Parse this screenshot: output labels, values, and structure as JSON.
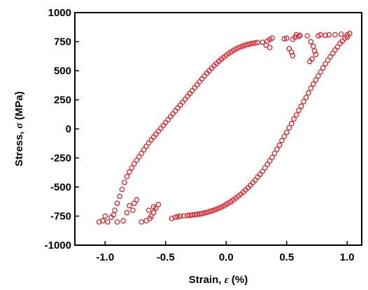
{
  "chart_data": {
    "type": "scatter",
    "xlabel": "Strain,  ε (%)",
    "ylabel": "Stress, σ (MPa)",
    "xlabel_parts": [
      "Strain,  ",
      "ε",
      " (%)"
    ],
    "ylabel_parts": [
      "Stress, ",
      "σ",
      " (MPa)"
    ],
    "xlim": [
      -1.25,
      1.12
    ],
    "ylim": [
      -1000,
      1000
    ],
    "x_ticks": [
      -1.0,
      -0.5,
      0.0,
      0.5,
      1.0
    ],
    "x_tick_labels": [
      "-1.0",
      "-0.5",
      "0.0",
      "0.5",
      "1.0"
    ],
    "y_ticks": [
      -1000,
      -750,
      -500,
      -250,
      0,
      250,
      500,
      750,
      1000
    ],
    "y_tick_labels": [
      "-1000",
      "-750",
      "-500",
      "-250",
      "0",
      "250",
      "500",
      "750",
      "1000"
    ],
    "grid": false,
    "legend": "none",
    "marker": "open-circle",
    "color": "#e8202a",
    "series": [
      {
        "points": [
          [
            -1.05,
            -800
          ],
          [
            -1.02,
            -790
          ],
          [
            -0.98,
            -800
          ],
          [
            -0.95,
            -760
          ],
          [
            -0.92,
            -700
          ],
          [
            -0.9,
            -640
          ],
          [
            -0.88,
            -580
          ],
          [
            -0.86,
            -520
          ],
          [
            -0.84,
            -460
          ],
          [
            -0.82,
            -410
          ],
          [
            -0.8,
            -370
          ],
          [
            -0.78,
            -335
          ],
          [
            -0.76,
            -300
          ],
          [
            -0.74,
            -270
          ],
          [
            -0.72,
            -240
          ],
          [
            -0.7,
            -210
          ],
          [
            -0.68,
            -180
          ],
          [
            -0.66,
            -150
          ],
          [
            -0.64,
            -120
          ],
          [
            -0.62,
            -95
          ],
          [
            -0.6,
            -70
          ],
          [
            -0.58,
            -45
          ],
          [
            -0.56,
            -20
          ],
          [
            -0.54,
            5
          ],
          [
            -0.52,
            30
          ],
          [
            -0.5,
            55
          ],
          [
            -0.48,
            80
          ],
          [
            -0.46,
            105
          ],
          [
            -0.44,
            130
          ],
          [
            -0.42,
            155
          ],
          [
            -0.4,
            180
          ],
          [
            -0.38,
            205
          ],
          [
            -0.36,
            230
          ],
          [
            -0.34,
            255
          ],
          [
            -0.32,
            280
          ],
          [
            -0.3,
            305
          ],
          [
            -0.28,
            330
          ],
          [
            -0.26,
            355
          ],
          [
            -0.24,
            380
          ],
          [
            -0.22,
            405
          ],
          [
            -0.2,
            430
          ],
          [
            -0.18,
            455
          ],
          [
            -0.16,
            478
          ],
          [
            -0.14,
            500
          ],
          [
            -0.12,
            522
          ],
          [
            -0.1,
            543
          ],
          [
            -0.08,
            563
          ],
          [
            -0.06,
            582
          ],
          [
            -0.04,
            600
          ],
          [
            -0.02,
            617
          ],
          [
            0.0,
            633
          ],
          [
            0.02,
            648
          ],
          [
            0.04,
            662
          ],
          [
            0.06,
            675
          ],
          [
            0.08,
            687
          ],
          [
            0.1,
            697
          ],
          [
            0.12,
            706
          ],
          [
            0.14,
            714
          ],
          [
            0.16,
            721
          ],
          [
            0.18,
            727
          ],
          [
            0.2,
            732
          ],
          [
            0.22,
            736
          ],
          [
            0.24,
            740
          ],
          [
            0.26,
            743
          ],
          [
            0.3,
            745
          ],
          [
            0.34,
            755
          ],
          [
            0.36,
            770
          ],
          [
            0.38,
            780
          ],
          [
            0.33,
            720
          ],
          [
            0.36,
            700
          ],
          [
            0.48,
            775
          ],
          [
            0.5,
            780
          ],
          [
            0.55,
            770
          ],
          [
            0.57,
            790
          ],
          [
            0.6,
            795
          ],
          [
            0.58,
            810
          ],
          [
            0.61,
            805
          ],
          [
            0.52,
            690
          ],
          [
            0.54,
            660
          ],
          [
            0.55,
            630
          ],
          [
            0.67,
            800
          ],
          [
            0.7,
            750
          ],
          [
            0.72,
            710
          ],
          [
            0.73,
            670
          ],
          [
            0.74,
            640
          ],
          [
            0.71,
            600
          ],
          [
            0.69,
            580
          ],
          [
            0.76,
            800
          ],
          [
            0.78,
            810
          ],
          [
            0.82,
            805
          ],
          [
            0.85,
            810
          ],
          [
            0.9,
            810
          ],
          [
            0.95,
            815
          ],
          [
            1.0,
            810
          ],
          [
            1.02,
            820
          ],
          [
            -0.7,
            -800
          ],
          [
            -0.66,
            -790
          ],
          [
            -0.63,
            -770
          ],
          [
            -0.6,
            -720
          ],
          [
            -0.58,
            -680
          ],
          [
            -0.56,
            -650
          ],
          [
            -0.62,
            -750
          ],
          [
            -0.64,
            -700
          ],
          [
            -0.6,
            -670
          ],
          [
            -0.76,
            -640
          ],
          [
            -0.74,
            -610
          ],
          [
            -0.77,
            -700
          ],
          [
            -0.85,
            -790
          ],
          [
            -0.82,
            -720
          ],
          [
            -0.8,
            -660
          ],
          [
            -0.9,
            -800
          ],
          [
            -0.93,
            -740
          ],
          [
            -1.0,
            -750
          ],
          [
            -0.45,
            -770
          ],
          [
            -0.42,
            -760
          ],
          [
            -0.4,
            -755
          ],
          [
            -0.38,
            -750
          ],
          [
            -0.35,
            -748
          ],
          [
            -0.32,
            -745
          ],
          [
            -0.28,
            -740
          ],
          [
            -0.24,
            -735
          ],
          [
            -0.2,
            -728
          ],
          [
            -0.16,
            -718
          ],
          [
            -0.12,
            -705
          ],
          [
            -0.08,
            -690
          ],
          [
            -0.04,
            -672
          ],
          [
            0.0,
            -650
          ],
          [
            0.04,
            -625
          ],
          [
            0.08,
            -595
          ],
          [
            0.12,
            -562
          ],
          [
            0.16,
            -525
          ],
          [
            0.2,
            -485
          ],
          [
            0.24,
            -440
          ],
          [
            0.28,
            -390
          ],
          [
            0.32,
            -335
          ],
          [
            0.36,
            -275
          ],
          [
            0.4,
            -210
          ],
          [
            0.44,
            -140
          ],
          [
            0.48,
            -65
          ],
          [
            0.52,
            10
          ],
          [
            0.56,
            85
          ],
          [
            0.6,
            160
          ],
          [
            0.64,
            235
          ],
          [
            0.68,
            310
          ],
          [
            0.72,
            385
          ],
          [
            0.76,
            455
          ],
          [
            0.8,
            525
          ],
          [
            0.84,
            590
          ],
          [
            0.88,
            650
          ],
          [
            0.92,
            705
          ],
          [
            0.96,
            755
          ],
          [
            1.0,
            790
          ],
          [
            0.98,
            780
          ],
          [
            0.94,
            735
          ],
          [
            0.9,
            680
          ],
          [
            0.86,
            620
          ],
          [
            0.82,
            560
          ],
          [
            0.78,
            490
          ],
          [
            0.74,
            420
          ],
          [
            0.7,
            350
          ],
          [
            0.66,
            270
          ],
          [
            0.62,
            195
          ],
          [
            0.58,
            120
          ],
          [
            0.54,
            45
          ],
          [
            0.5,
            -30
          ],
          [
            0.46,
            -100
          ],
          [
            0.42,
            -175
          ],
          [
            0.38,
            -245
          ],
          [
            0.34,
            -305
          ],
          [
            0.3,
            -365
          ],
          [
            0.26,
            -415
          ],
          [
            0.22,
            -462
          ],
          [
            0.18,
            -505
          ],
          [
            0.14,
            -545
          ],
          [
            0.1,
            -578
          ],
          [
            0.06,
            -610
          ],
          [
            0.02,
            -638
          ],
          [
            -0.02,
            -662
          ],
          [
            -0.06,
            -682
          ],
          [
            -0.1,
            -698
          ],
          [
            -0.14,
            -712
          ],
          [
            -0.18,
            -723
          ],
          [
            -0.22,
            -732
          ],
          [
            -0.26,
            -738
          ],
          [
            -0.3,
            -743
          ]
        ]
      }
    ]
  }
}
